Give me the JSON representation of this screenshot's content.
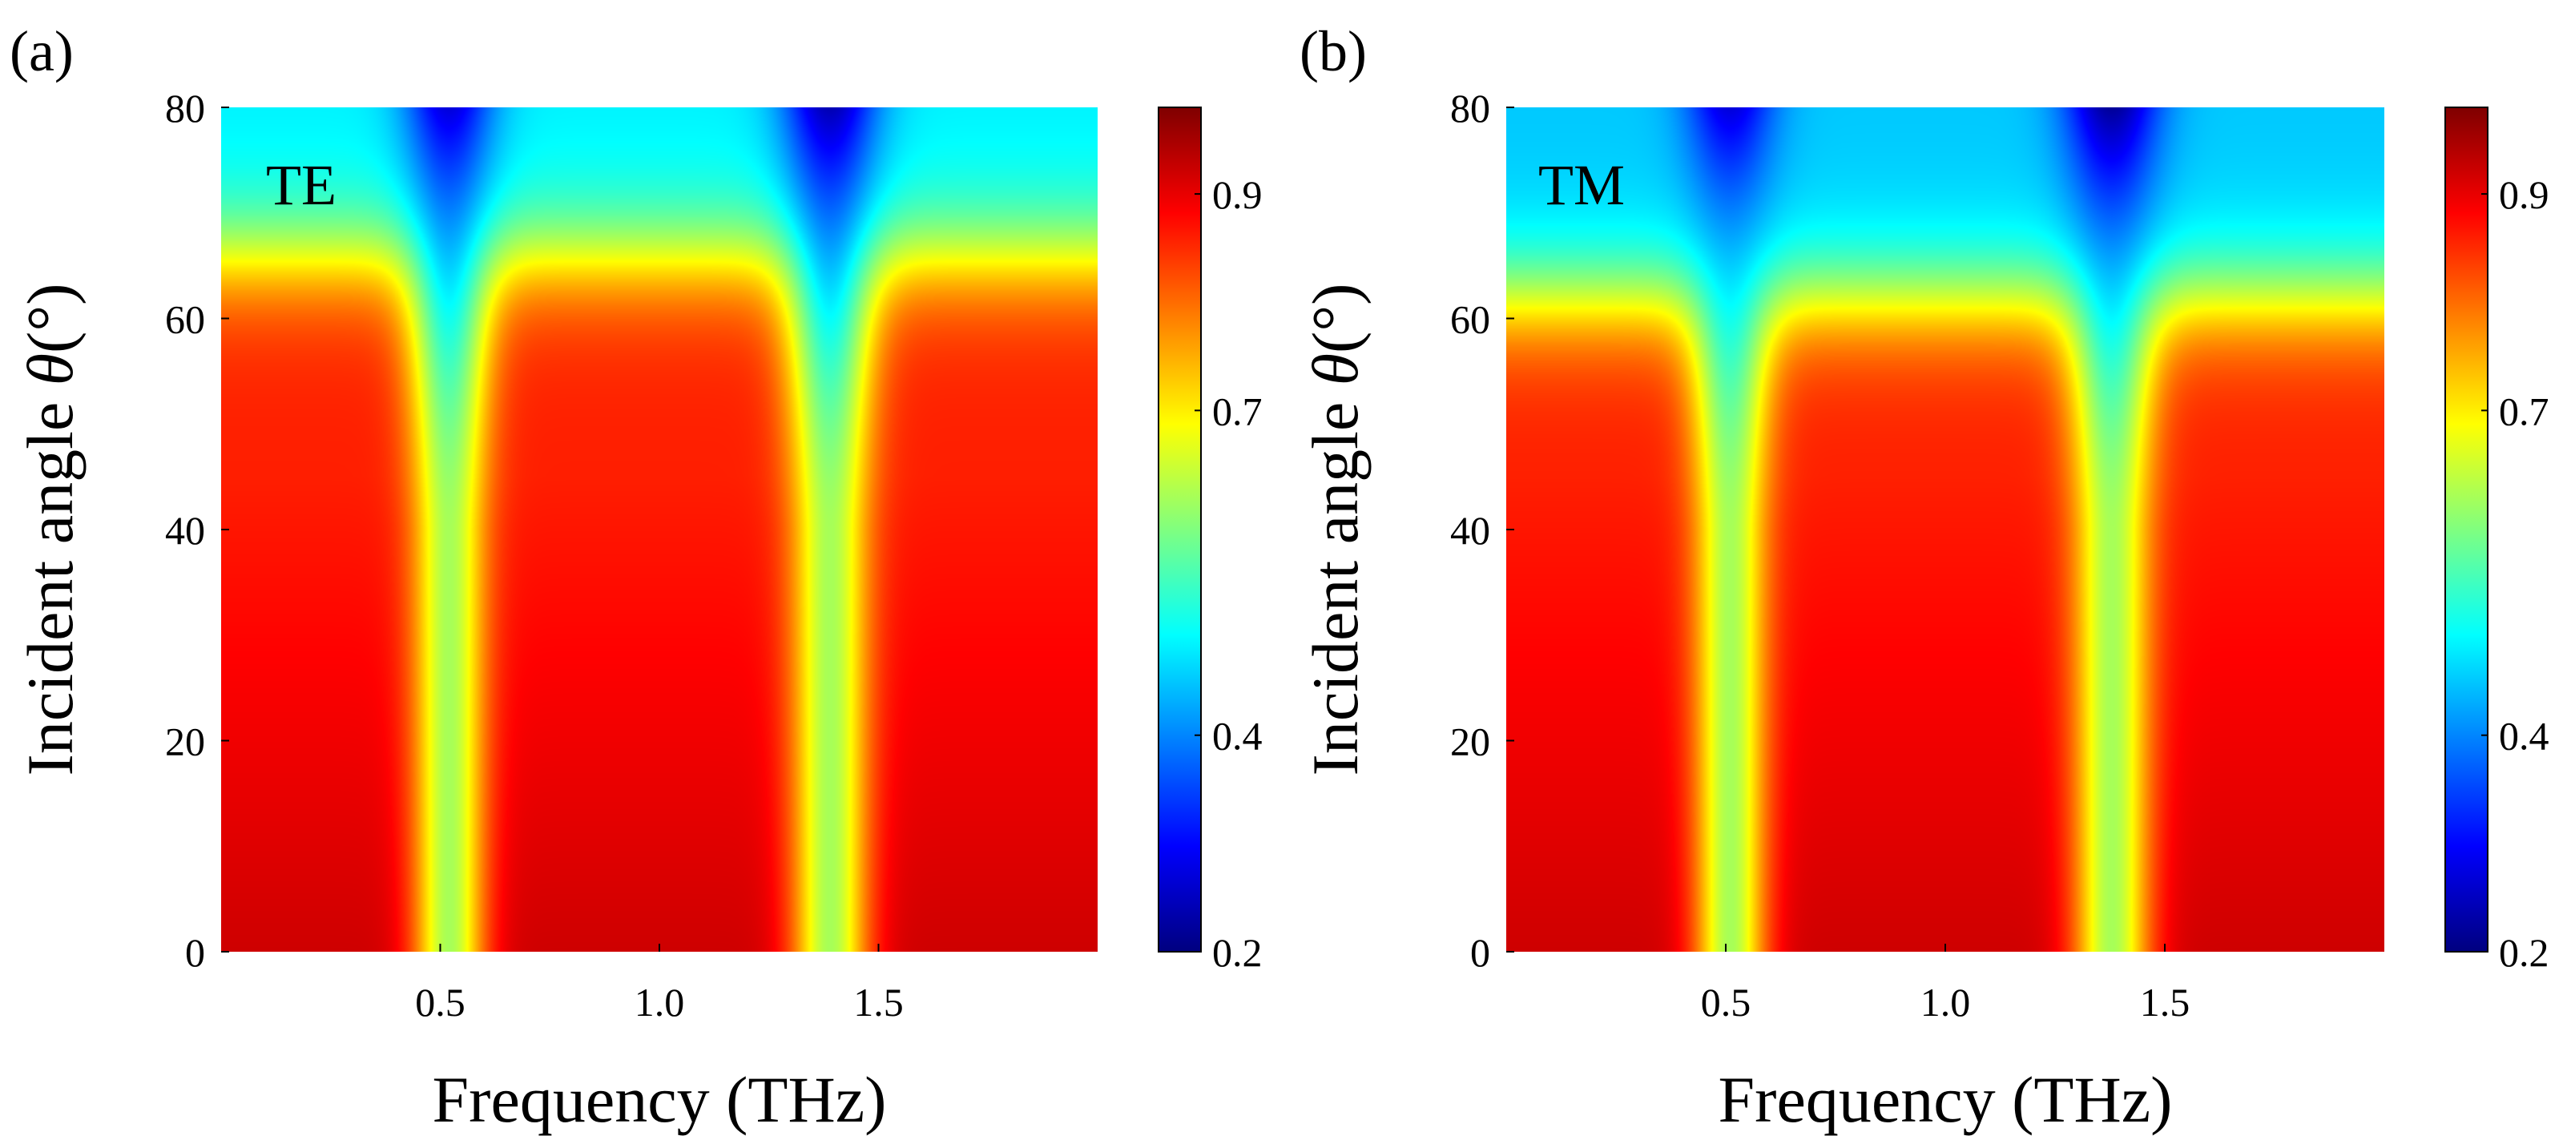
{
  "figure": {
    "description_free": true
  },
  "chart_data": [
    {
      "type": "heatmap",
      "panel_label": "(a)",
      "inset_label": "TE",
      "xlabel": "Frequency (THz)",
      "ylabel_prefix": "Incident angle ",
      "ylabel_symbol": "θ",
      "ylabel_suffix": "(°)",
      "xlim": [
        0.0,
        2.0
      ],
      "ylim": [
        0,
        80
      ],
      "xticks": [
        0.5,
        1.0,
        1.5
      ],
      "xtick_labels": [
        "0.5",
        "1.0",
        "1.5"
      ],
      "yticks": [
        0,
        20,
        40,
        60,
        80
      ],
      "ytick_labels": [
        "0",
        "20",
        "40",
        "60",
        "80"
      ],
      "colorbar": {
        "range": [
          0.2,
          0.98
        ],
        "ticks": [
          0.2,
          0.4,
          0.7,
          0.9
        ],
        "tick_labels": [
          "0.2",
          "0.4",
          "0.7",
          "0.9"
        ],
        "colormap": "jet"
      },
      "dips": [
        {
          "center_thz": 0.52,
          "width_thz": 0.15,
          "min_value": 0.62,
          "top_min_value": 0.27
        },
        {
          "center_thz": 1.39,
          "width_thz": 0.16,
          "min_value": 0.62,
          "top_min_value": 0.24
        }
      ],
      "plateau": {
        "low_angle_value": 0.92,
        "edge_value": 0.86,
        "cutoff_angle_deg": 66,
        "top_value": 0.48
      }
    },
    {
      "type": "heatmap",
      "panel_label": "(b)",
      "inset_label": "TM",
      "xlabel": "Frequency (THz)",
      "ylabel_prefix": "Incident angle ",
      "ylabel_symbol": "θ",
      "ylabel_suffix": "(°)",
      "xlim": [
        0.0,
        2.0
      ],
      "ylim": [
        0,
        80
      ],
      "xticks": [
        0.5,
        1.0,
        1.5
      ],
      "xtick_labels": [
        "0.5",
        "1.0",
        "1.5"
      ],
      "yticks": [
        0,
        20,
        40,
        60,
        80
      ],
      "ytick_labels": [
        "0",
        "20",
        "40",
        "60",
        "80"
      ],
      "colorbar": {
        "range": [
          0.2,
          0.98
        ],
        "ticks": [
          0.2,
          0.4,
          0.7,
          0.9
        ],
        "tick_labels": [
          "0.2",
          "0.4",
          "0.7",
          "0.9"
        ],
        "colormap": "jet"
      },
      "dips": [
        {
          "center_thz": 0.51,
          "width_thz": 0.15,
          "min_value": 0.62,
          "top_min_value": 0.27
        },
        {
          "center_thz": 1.38,
          "width_thz": 0.16,
          "min_value": 0.62,
          "top_min_value": 0.22
        }
      ],
      "plateau": {
        "low_angle_value": 0.92,
        "edge_value": 0.86,
        "cutoff_angle_deg": 62,
        "top_value": 0.45
      }
    }
  ]
}
